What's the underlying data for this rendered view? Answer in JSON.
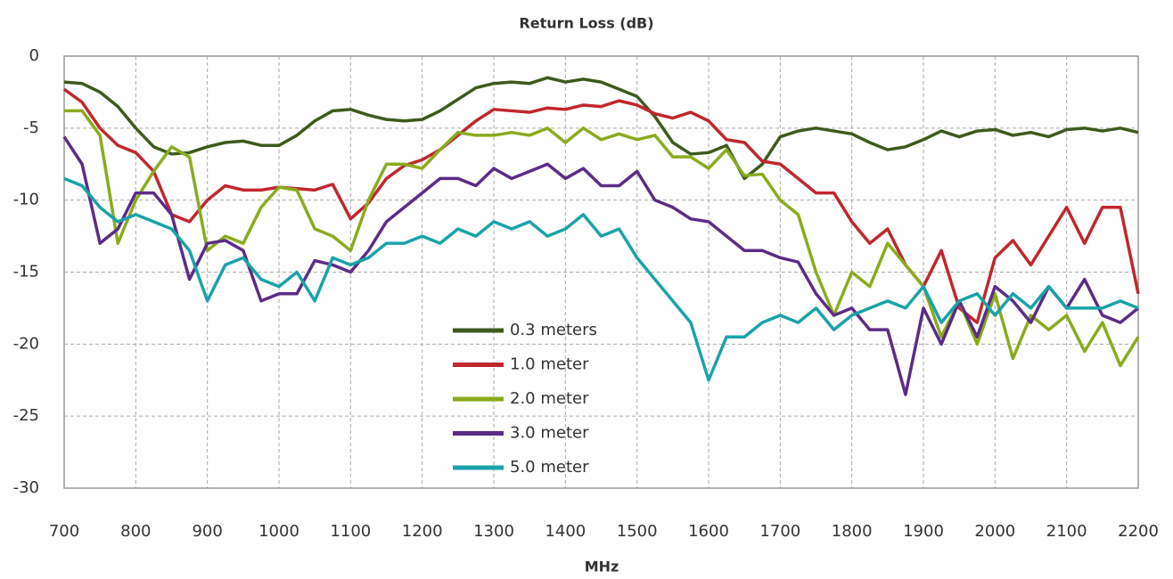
{
  "chart_data": {
    "type": "line",
    "title": "Return Loss (dB)",
    "x_label": "MHz",
    "x": [
      700,
      725,
      750,
      775,
      800,
      825,
      850,
      875,
      900,
      925,
      950,
      975,
      1000,
      1025,
      1050,
      1075,
      1100,
      1125,
      1150,
      1175,
      1200,
      1225,
      1250,
      1275,
      1300,
      1325,
      1350,
      1375,
      1400,
      1425,
      1450,
      1475,
      1500,
      1525,
      1550,
      1575,
      1600,
      1625,
      1650,
      1675,
      1700,
      1725,
      1750,
      1775,
      1800,
      1825,
      1850,
      1875,
      1900,
      1925,
      1950,
      1975,
      2000,
      2025,
      2050,
      2075,
      2100,
      2125,
      2150,
      2175,
      2200
    ],
    "series": [
      {
        "name": "0.3 meters",
        "color": "#3e5a1e",
        "values": [
          -1.8,
          -1.9,
          -2.5,
          -3.5,
          -5,
          -6.3,
          -6.8,
          -6.7,
          -6.3,
          -6,
          -5.9,
          -6.2,
          -6.2,
          -5.5,
          -4.5,
          -3.8,
          -3.7,
          -4.1,
          -4.4,
          -4.5,
          -4.4,
          -3.8,
          -3,
          -2.2,
          -1.9,
          -1.8,
          -1.9,
          -1.5,
          -1.8,
          -1.6,
          -1.8,
          -2.3,
          -2.8,
          -4.2,
          -6,
          -6.8,
          -6.7,
          -6.2,
          -8.5,
          -7.5,
          -5.6,
          -5.2,
          -5,
          -5.2,
          -5.4,
          -6,
          -6.5,
          -6.3,
          -5.8,
          -5.2,
          -5.6,
          -5.2,
          -5.1,
          -5.5,
          -5.3,
          -5.6,
          -5.1,
          -5,
          -5.2,
          -5,
          -5.3
        ]
      },
      {
        "name": "1.0 meter",
        "color": "#c0272d",
        "values": [
          -2.3,
          -3.2,
          -5,
          -6.2,
          -6.7,
          -8,
          -11,
          -11.5,
          -10,
          -9,
          -9.3,
          -9.3,
          -9.1,
          -9.2,
          -9.3,
          -8.9,
          -11.3,
          -10.2,
          -8.5,
          -7.6,
          -7.2,
          -6.5,
          -5.5,
          -4.5,
          -3.7,
          -3.8,
          -3.9,
          -3.6,
          -3.7,
          -3.4,
          -3.5,
          -3.1,
          -3.4,
          -4,
          -4.3,
          -3.9,
          -4.5,
          -5.8,
          -6,
          -7.3,
          -7.5,
          -8.5,
          -9.5,
          -9.5,
          -11.5,
          -13,
          -12,
          -14.5,
          -16,
          -13.5,
          -17.5,
          -18.5,
          -14,
          -12.8,
          -14.5,
          -12.5,
          -10.5,
          -13,
          -10.5,
          -10.5,
          -16.5
        ]
      },
      {
        "name": "2.0 meter",
        "color": "#8aab1e",
        "values": [
          -3.8,
          -3.8,
          -5.5,
          -13,
          -10,
          -8,
          -6.3,
          -7,
          -13.5,
          -12.5,
          -13,
          -10.5,
          -9.1,
          -9.3,
          -12,
          -12.5,
          -13.5,
          -10,
          -7.5,
          -7.5,
          -7.8,
          -6.5,
          -5.3,
          -5.5,
          -5.5,
          -5.3,
          -5.5,
          -5,
          -6,
          -5,
          -5.8,
          -5.4,
          -5.8,
          -5.5,
          -7,
          -7,
          -7.8,
          -6.5,
          -8.3,
          -8.2,
          -10,
          -11,
          -15,
          -18,
          -15,
          -16,
          -13,
          -14.5,
          -16,
          -19.5,
          -17,
          -20,
          -16.5,
          -21,
          -18,
          -19,
          -18,
          -20.5,
          -18.5,
          -21.5,
          -19.5
        ]
      },
      {
        "name": "3.0 meter",
        "color": "#5b2d86",
        "values": [
          -5.6,
          -7.5,
          -13,
          -12,
          -9.5,
          -9.5,
          -11,
          -15.5,
          -13,
          -12.8,
          -13.5,
          -17,
          -16.5,
          -16.5,
          -14.2,
          -14.5,
          -15,
          -13.5,
          -11.5,
          -10.5,
          -9.5,
          -8.5,
          -8.5,
          -9,
          -7.8,
          -8.5,
          -8,
          -7.5,
          -8.5,
          -7.8,
          -9,
          -9,
          -8,
          -10,
          -10.5,
          -11.3,
          -11.5,
          -12.5,
          -13.5,
          -13.5,
          -14,
          -14.3,
          -16.5,
          -18,
          -17.5,
          -19,
          -19,
          -23.5,
          -17.5,
          -20,
          -17,
          -19.5,
          -16,
          -17,
          -18.5,
          -16,
          -17.5,
          -15.5,
          -18,
          -18.5,
          -17.5
        ]
      },
      {
        "name": "5.0 meter",
        "color": "#1aa3a8",
        "values": [
          -8.5,
          -9,
          -10.5,
          -11.5,
          -11,
          -11.5,
          -12,
          -13.5,
          -17,
          -14.5,
          -14,
          -15.5,
          -16,
          -15,
          -17,
          -14,
          -14.5,
          -14,
          -13,
          -13,
          -12.5,
          -13,
          -12,
          -12.5,
          -11.5,
          -12,
          -11.5,
          -12.5,
          -12,
          -11,
          -12.5,
          -12,
          -14,
          -15.5,
          -17,
          -18.5,
          -22.5,
          -19.5,
          -19.5,
          -18.5,
          -18,
          -18.5,
          -17.5,
          -19,
          -18,
          -17.5,
          -17,
          -17.5,
          -16,
          -18.5,
          -17,
          -16.5,
          -18,
          -16.5,
          -17.5,
          -16,
          -17.5,
          -17.5,
          -17.5,
          -17,
          -17.5
        ]
      }
    ],
    "xlim": [
      700,
      2200
    ],
    "xticks": [
      700,
      800,
      900,
      1000,
      1100,
      1200,
      1300,
      1400,
      1500,
      1600,
      1700,
      1800,
      1900,
      2000,
      2100,
      2200
    ],
    "ylim": [
      -30,
      0
    ],
    "yticks": [
      0,
      -5,
      -10,
      -15,
      -20,
      -25,
      -30
    ],
    "grid": true
  }
}
